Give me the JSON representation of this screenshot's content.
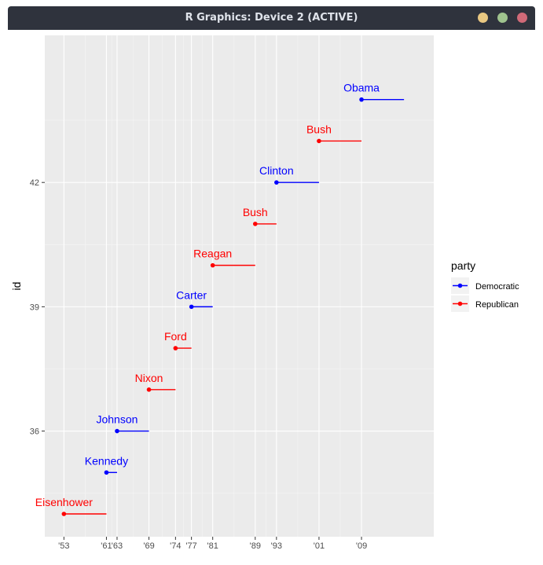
{
  "window": {
    "title": "R Graphics: Device 2 (ACTIVE)"
  },
  "chart_data": {
    "type": "line",
    "xlabel": "",
    "ylabel": "id",
    "x_breaks": [
      1953,
      1961,
      1963,
      1969,
      1974,
      1977,
      1981,
      1989,
      1993,
      2001,
      2009
    ],
    "x_tick_labels": [
      "'53",
      "'61",
      "'63",
      "'69",
      "'74",
      "'77",
      "'81",
      "'89",
      "'93",
      "'01",
      "'09"
    ],
    "xlim": [
      1949.4,
      2022.6
    ],
    "y_breaks": [
      36,
      39,
      42
    ],
    "y_tick_labels": [
      "36",
      "39",
      "42"
    ],
    "ylim": [
      33.45,
      45.55
    ],
    "grid": true,
    "legend": {
      "title": "party",
      "position": "right",
      "entries": [
        {
          "name": "Democratic",
          "color": "#0000ff"
        },
        {
          "name": "Republican",
          "color": "#ff0000"
        }
      ]
    },
    "colors": {
      "Democratic": "#0000ff",
      "Republican": "#ff0000"
    },
    "series": [
      {
        "name": "Eisenhower",
        "id": 34,
        "start": 1953,
        "end": 1961,
        "party": "Republican"
      },
      {
        "name": "Kennedy",
        "id": 35,
        "start": 1961,
        "end": 1963,
        "party": "Democratic"
      },
      {
        "name": "Johnson",
        "id": 36,
        "start": 1963,
        "end": 1969,
        "party": "Democratic"
      },
      {
        "name": "Nixon",
        "id": 37,
        "start": 1969,
        "end": 1974,
        "party": "Republican"
      },
      {
        "name": "Ford",
        "id": 38,
        "start": 1974,
        "end": 1977,
        "party": "Republican"
      },
      {
        "name": "Carter",
        "id": 39,
        "start": 1977,
        "end": 1981,
        "party": "Democratic"
      },
      {
        "name": "Reagan",
        "id": 40,
        "start": 1981,
        "end": 1989,
        "party": "Republican"
      },
      {
        "name": "Bush",
        "id": 41,
        "start": 1989,
        "end": 1993,
        "party": "Republican"
      },
      {
        "name": "Clinton",
        "id": 42,
        "start": 1993,
        "end": 2001,
        "party": "Democratic"
      },
      {
        "name": "Bush",
        "id": 43,
        "start": 2001,
        "end": 2009,
        "party": "Republican"
      },
      {
        "name": "Obama",
        "id": 44,
        "start": 2009,
        "end": 2017,
        "party": "Democratic"
      }
    ]
  }
}
